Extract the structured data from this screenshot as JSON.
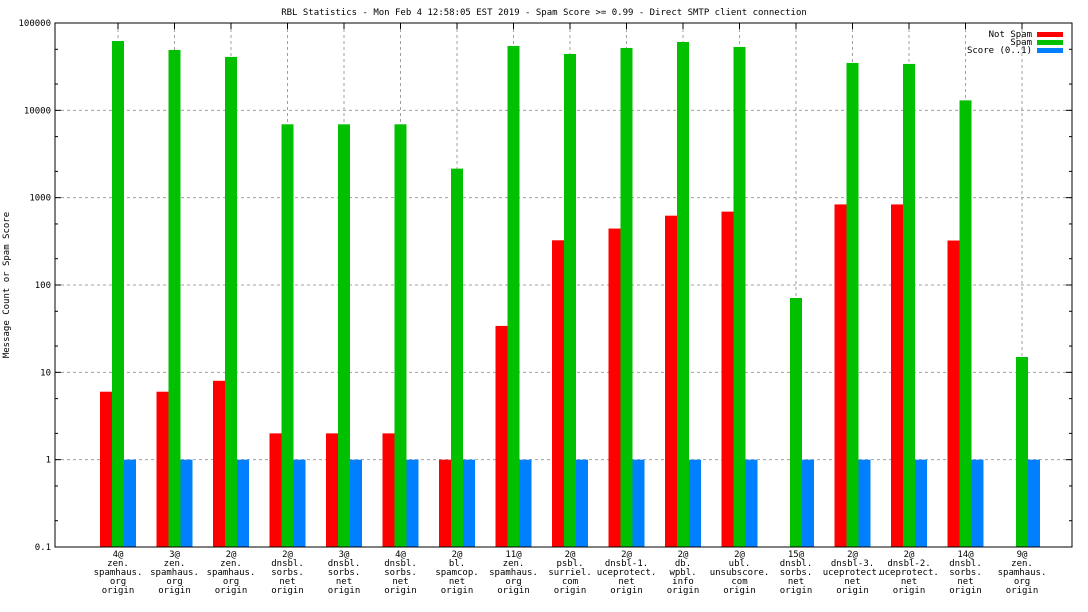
{
  "chart_data": {
    "type": "bar",
    "title": "RBL Statistics - Mon Feb  4 12:58:05 EST 2019 - Spam Score >= 0.99 - Direct SMTP client connection",
    "xlabel": "",
    "ylabel": "Message Count or Spam Score",
    "yscale": "log",
    "ylim": [
      0.1,
      100000
    ],
    "yticks": [
      0.1,
      1,
      10,
      100,
      1000,
      10000,
      100000
    ],
    "ytick_labels": [
      "0.1",
      "1",
      "10",
      "100",
      "1000",
      "10000",
      "100000"
    ],
    "grid": true,
    "legend_position": "top-right",
    "categories": [
      [
        "4@",
        "zen.",
        "spamhaus.",
        "org",
        "origin"
      ],
      [
        "3@",
        "zen.",
        "spamhaus.",
        "org",
        "origin"
      ],
      [
        "2@",
        "zen.",
        "spamhaus.",
        "org",
        "origin"
      ],
      [
        "2@",
        "dnsbl.",
        "sorbs.",
        "net",
        "origin"
      ],
      [
        "3@",
        "dnsbl.",
        "sorbs.",
        "net",
        "origin"
      ],
      [
        "4@",
        "dnsbl.",
        "sorbs.",
        "net",
        "origin"
      ],
      [
        "2@",
        "bl.",
        "spamcop.",
        "net",
        "origin"
      ],
      [
        "11@",
        "zen.",
        "spamhaus.",
        "org",
        "origin"
      ],
      [
        "2@",
        "psbl.",
        "surriel.",
        "com",
        "origin"
      ],
      [
        "2@",
        "dnsbl-1.",
        "uceprotect.",
        "net",
        "origin"
      ],
      [
        "2@",
        "db.",
        "wpbl.",
        "info",
        "origin"
      ],
      [
        "2@",
        "ubl.",
        "unsubscore.",
        "com",
        "origin"
      ],
      [
        "15@",
        "dnsbl.",
        "sorbs.",
        "net",
        "origin"
      ],
      [
        "2@",
        "dnsbl-3.",
        "uceprotect.",
        "net",
        "origin"
      ],
      [
        "2@",
        "dnsbl-2.",
        "uceprotect.",
        "net",
        "origin"
      ],
      [
        "14@",
        "dnsbl.",
        "sorbs.",
        "net",
        "origin"
      ],
      [
        "9@",
        "zen.",
        "spamhaus.",
        "org",
        "origin"
      ]
    ],
    "series": [
      {
        "name": "Not Spam",
        "color": "#ff0000",
        "values": [
          6,
          6,
          8,
          2,
          2,
          2,
          1,
          34,
          325,
          443,
          622,
          692,
          null,
          837,
          837,
          323,
          null
        ]
      },
      {
        "name": "Spam",
        "color": "#00c000",
        "values": [
          62200,
          49100,
          40900,
          6920,
          6920,
          6920,
          2150,
          54600,
          44200,
          51800,
          60600,
          53200,
          71,
          34900,
          34000,
          13000,
          15
        ]
      },
      {
        "name": "Score (0..1)",
        "color": "#0080ff",
        "values": [
          1,
          1,
          1,
          1,
          1,
          1,
          1,
          1,
          1,
          1,
          1,
          1,
          1,
          1,
          1,
          1,
          1
        ]
      }
    ]
  }
}
